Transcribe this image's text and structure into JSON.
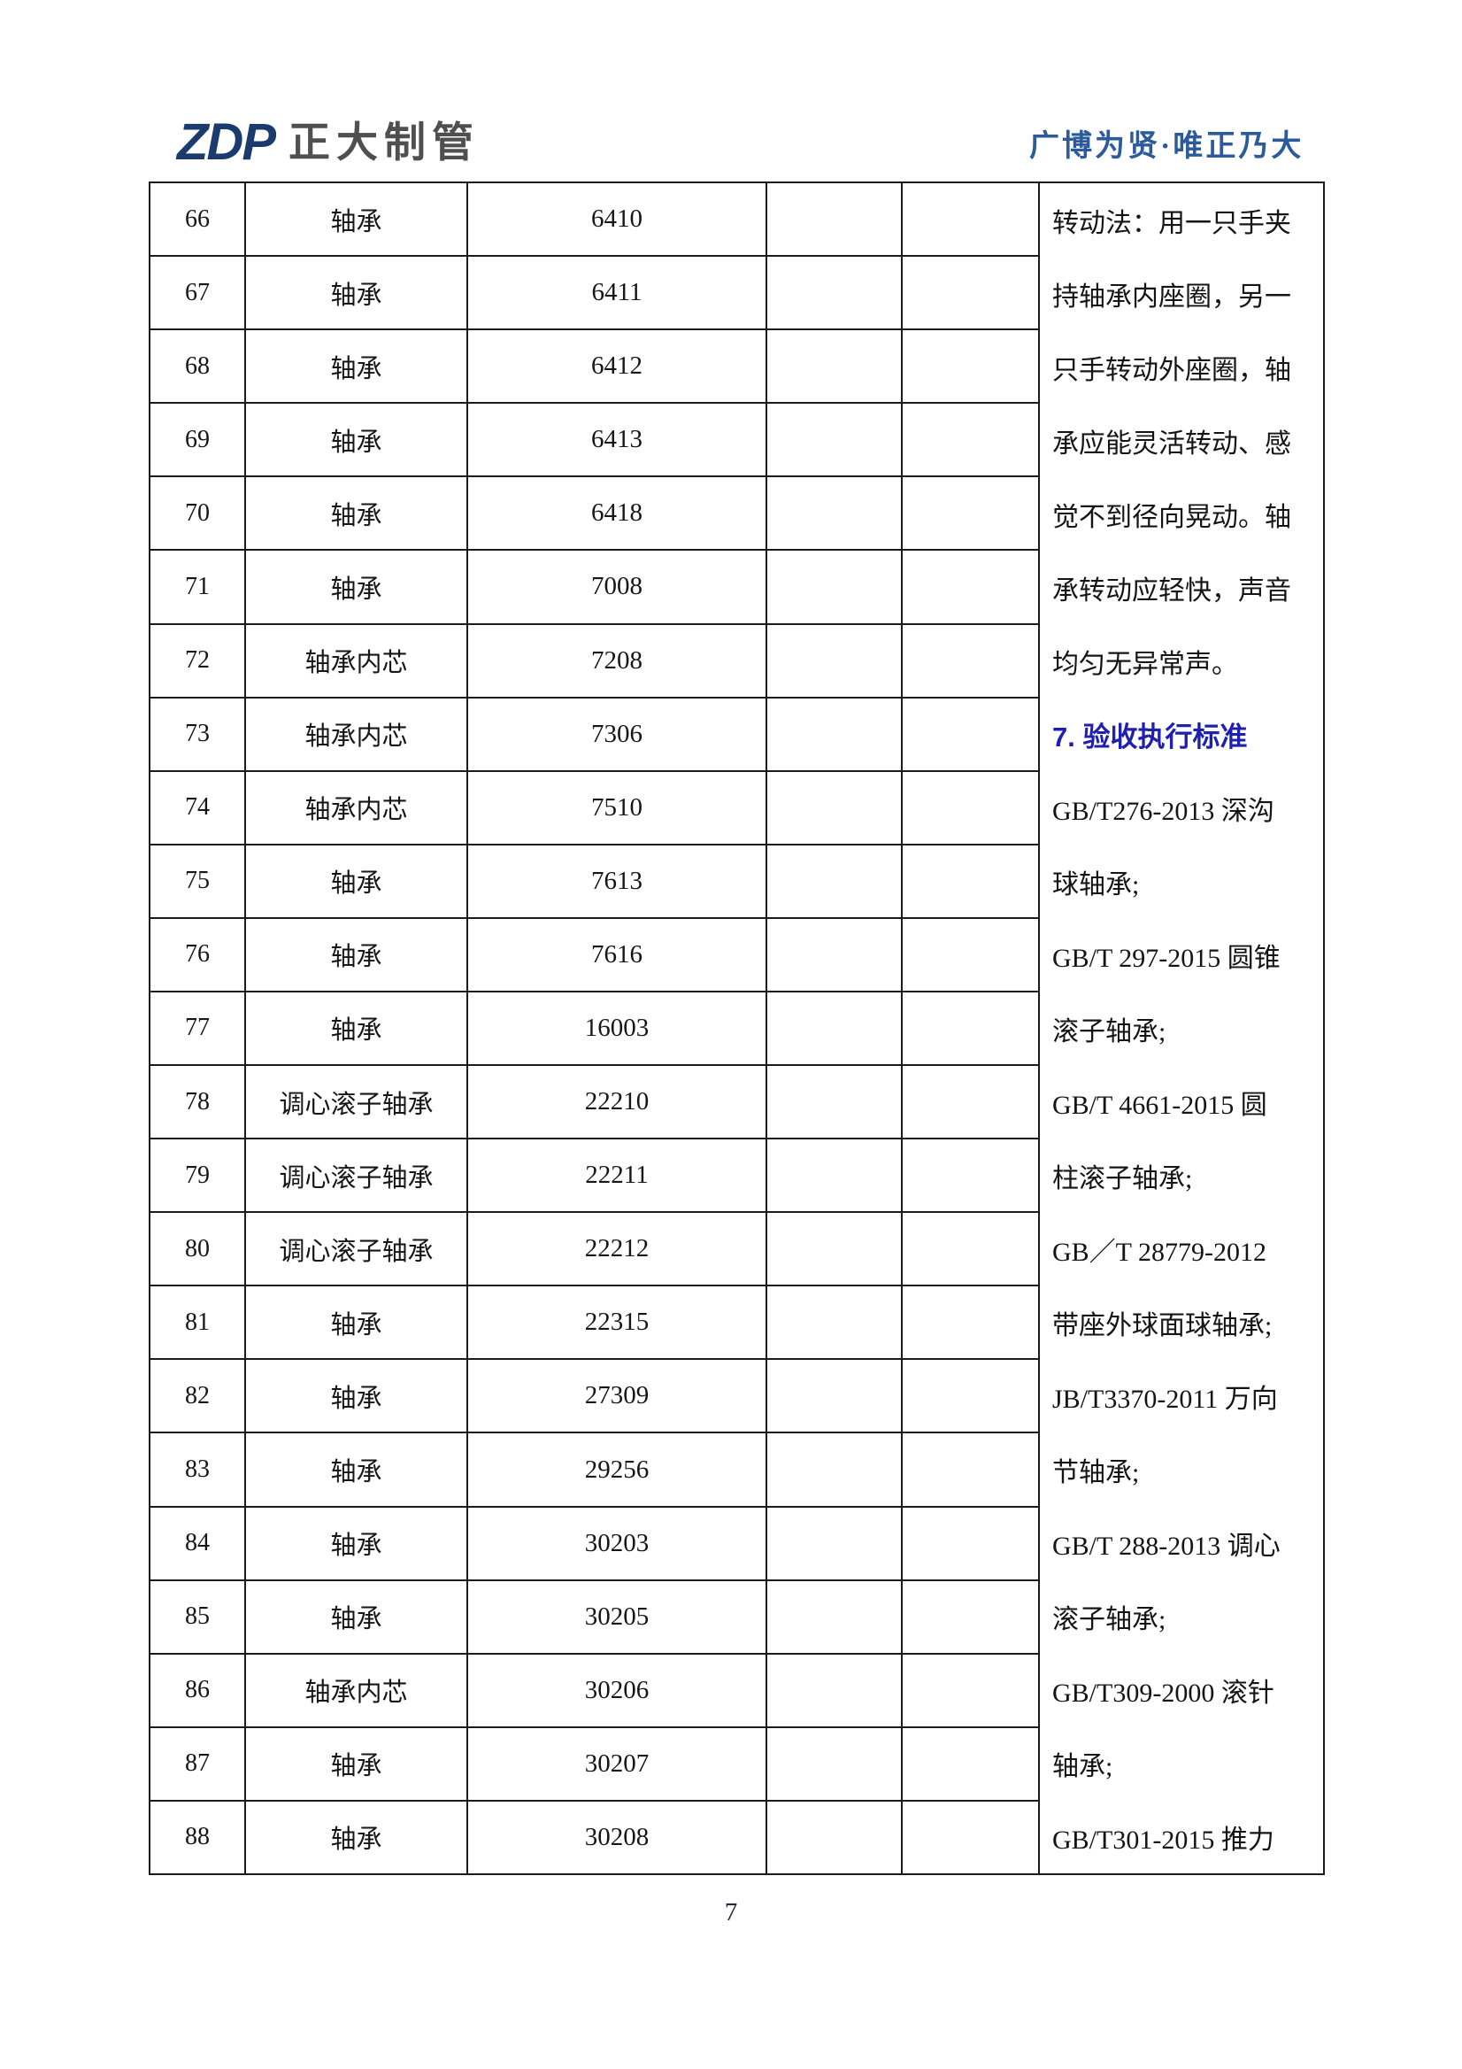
{
  "header": {
    "logo_zdp": "ZDP",
    "logo_name": "正大制管",
    "tagline": "广博为贤·唯正乃大"
  },
  "table": {
    "rows": [
      {
        "no": "66",
        "name": "轴承",
        "model": "6410"
      },
      {
        "no": "67",
        "name": "轴承",
        "model": "6411"
      },
      {
        "no": "68",
        "name": "轴承",
        "model": "6412"
      },
      {
        "no": "69",
        "name": "轴承",
        "model": "6413"
      },
      {
        "no": "70",
        "name": "轴承",
        "model": "6418"
      },
      {
        "no": "71",
        "name": "轴承",
        "model": "7008"
      },
      {
        "no": "72",
        "name": "轴承内芯",
        "model": "7208"
      },
      {
        "no": "73",
        "name": "轴承内芯",
        "model": "7306"
      },
      {
        "no": "74",
        "name": "轴承内芯",
        "model": "7510"
      },
      {
        "no": "75",
        "name": "轴承",
        "model": "7613"
      },
      {
        "no": "76",
        "name": "轴承",
        "model": "7616"
      },
      {
        "no": "77",
        "name": "轴承",
        "model": "16003"
      },
      {
        "no": "78",
        "name": "调心滚子轴承",
        "model": "22210"
      },
      {
        "no": "79",
        "name": "调心滚子轴承",
        "model": "22211"
      },
      {
        "no": "80",
        "name": "调心滚子轴承",
        "model": "22212"
      },
      {
        "no": "81",
        "name": "轴承",
        "model": "22315"
      },
      {
        "no": "82",
        "name": "轴承",
        "model": "27309"
      },
      {
        "no": "83",
        "name": "轴承",
        "model": "29256"
      },
      {
        "no": "84",
        "name": "轴承",
        "model": "30203"
      },
      {
        "no": "85",
        "name": "轴承",
        "model": "30205"
      },
      {
        "no": "86",
        "name": "轴承内芯",
        "model": "30206"
      },
      {
        "no": "87",
        "name": "轴承",
        "model": "30207"
      },
      {
        "no": "88",
        "name": "轴承",
        "model": "30208"
      }
    ]
  },
  "side_notes": {
    "lines": [
      {
        "text": "转动法：用一只手夹",
        "style": "normal"
      },
      {
        "text": "持轴承内座圈，另一",
        "style": "normal"
      },
      {
        "text": "只手转动外座圈，轴",
        "style": "normal"
      },
      {
        "text": "承应能灵活转动、感",
        "style": "normal"
      },
      {
        "text": "觉不到径向晃动。轴",
        "style": "normal"
      },
      {
        "text": "承转动应轻快，声音",
        "style": "normal"
      },
      {
        "text": "均匀无异常声。",
        "style": "normal"
      },
      {
        "text": "7. 验收执行标准",
        "style": "heading"
      },
      {
        "text": "GB/T276-2013 深沟",
        "style": "normal"
      },
      {
        "text": "球轴承;",
        "style": "normal"
      },
      {
        "text": "GB/T 297-2015 圆锥",
        "style": "normal"
      },
      {
        "text": "滚子轴承;",
        "style": "normal"
      },
      {
        "text": "GB/T 4661-2015 圆",
        "style": "normal"
      },
      {
        "text": "柱滚子轴承;",
        "style": "normal"
      },
      {
        "text": "GB／T 28779-2012",
        "style": "normal"
      },
      {
        "text": "带座外球面球轴承;",
        "style": "normal"
      },
      {
        "text": "JB/T3370-2011 万向",
        "style": "normal"
      },
      {
        "text": "节轴承;",
        "style": "normal"
      },
      {
        "text": "GB/T 288-2013 调心",
        "style": "normal"
      },
      {
        "text": "滚子轴承;",
        "style": "normal"
      },
      {
        "text": "GB/T309-2000 滚针",
        "style": "normal"
      },
      {
        "text": "轴承;",
        "style": "normal"
      },
      {
        "text": "GB/T301-2015 推力",
        "style": "normal"
      }
    ]
  },
  "footer": {
    "page_number": "7"
  },
  "colors": {
    "logo_blue": "#1b3a6d",
    "logo_gray": "#4f4f4f",
    "tagline_blue": "#2d5a9b",
    "heading_blue": "#2020b0",
    "border_color": "#1b1b1b"
  }
}
